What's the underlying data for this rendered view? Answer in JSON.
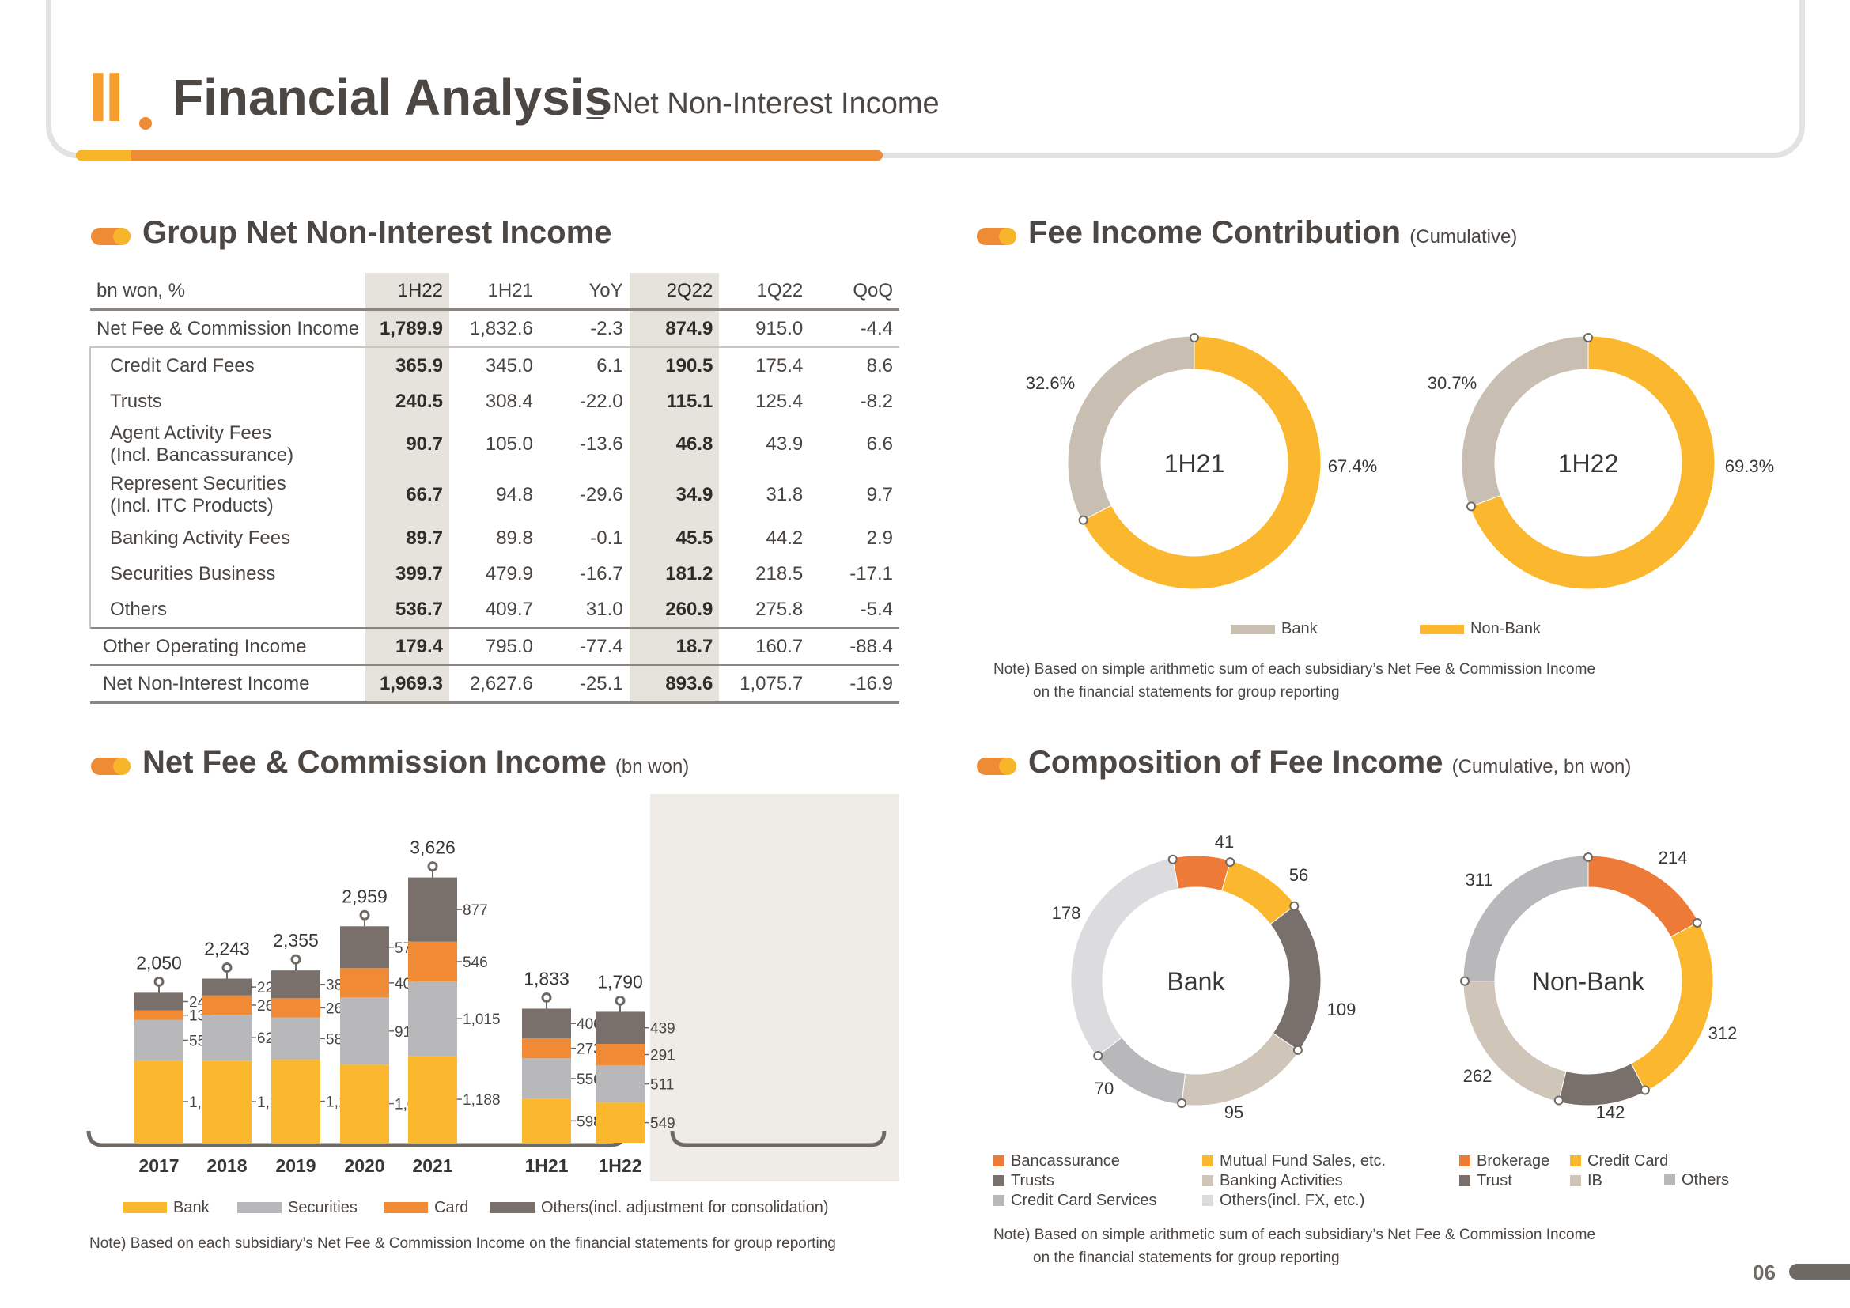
{
  "header": {
    "section": "II",
    "title": "Financial Analysis",
    "subtitle": "_ Net Non-Interest Income"
  },
  "sections": {
    "group": "Group Net Non-Interest Income",
    "fee_contrib": "Fee Income Contribution",
    "fee_contrib_sub": "(Cumulative)",
    "net_fee": "Net Fee & Commission Income",
    "net_fee_sub": "(bn won)",
    "composition": "Composition of Fee Income",
    "composition_sub": "(Cumulative, bn won)"
  },
  "table": {
    "headers": [
      "bn won, %",
      "1H22",
      "1H21",
      "YoY",
      "2Q22",
      "1Q22",
      "QoQ"
    ],
    "rows": [
      [
        "Net Fee & Commission Income",
        "1,789.9",
        "1,832.6",
        "-2.3",
        "874.9",
        "915.0",
        "-4.4"
      ],
      [
        "Credit Card Fees",
        "365.9",
        "345.0",
        "6.1",
        "190.5",
        "175.4",
        "8.6"
      ],
      [
        "Trusts",
        "240.5",
        "308.4",
        "-22.0",
        "115.1",
        "125.4",
        "-8.2"
      ],
      [
        "Agent Activity Fees",
        "90.7",
        "105.0",
        "-13.6",
        "46.8",
        "43.9",
        "6.6"
      ],
      [
        "Represent Securities",
        "66.7",
        "94.8",
        "-29.6",
        "34.9",
        "31.8",
        "9.7"
      ],
      [
        "Banking Activity Fees",
        "89.7",
        "89.8",
        "-0.1",
        "45.5",
        "44.2",
        "2.9"
      ],
      [
        "Securities Business",
        "399.7",
        "479.9",
        "-16.7",
        "181.2",
        "218.5",
        "-17.1"
      ],
      [
        "Others",
        "536.7",
        "409.7",
        "31.0",
        "260.9",
        "275.8",
        "-5.4"
      ],
      [
        "Other Operating Income",
        "179.4",
        "795.0",
        "-77.4",
        "18.7",
        "160.7",
        "-88.4"
      ],
      [
        "Net Non-Interest Income",
        "1,969.3",
        "2,627.6",
        "-25.1",
        "893.6",
        "1,075.7",
        "-16.9"
      ]
    ],
    "row_sublabels": {
      "3": "(Incl. Bancassurance)",
      "4": "(Incl. ITC Products)"
    }
  },
  "chart_data": [
    {
      "type": "bar",
      "title": "Net Fee & Commission Income",
      "categories": [
        "2017",
        "2018",
        "2019",
        "2020",
        "2021",
        "1H21",
        "1H22"
      ],
      "totals": [
        2050,
        2243,
        2355,
        2959,
        3626,
        1833,
        1790
      ],
      "series": [
        {
          "name": "Bank",
          "color": "#fbb82e",
          "values": [
            1125,
            1123,
            1133,
            1068,
            1188,
            598,
            549
          ]
        },
        {
          "name": "Securities",
          "color": "#b8b8bb",
          "values": [
            552,
            626,
            580,
            917,
            1015,
            556,
            511
          ]
        },
        {
          "name": "Card",
          "color": "#f08a35",
          "values": [
            133,
            265,
            262,
            401,
            546,
            273,
            291
          ]
        },
        {
          "name": "Others(incl. adjustment for consolidation)",
          "color": "#7a706b",
          "values": [
            240,
            229,
            380,
            573,
            877,
            406,
            439
          ]
        }
      ]
    },
    {
      "type": "pie",
      "title": "Fee Income Contribution",
      "charts": [
        {
          "label": "1H21",
          "slices": [
            {
              "name": "Bank",
              "value": 32.6,
              "label": "32.6%",
              "color": "#c8bfb2"
            },
            {
              "name": "Non-Bank",
              "value": 67.4,
              "label": "67.4%",
              "color": "#fbb82e"
            }
          ]
        },
        {
          "label": "1H22",
          "slices": [
            {
              "name": "Bank",
              "value": 30.7,
              "label": "30.7%",
              "color": "#c8bfb2"
            },
            {
              "name": "Non-Bank",
              "value": 69.3,
              "label": "69.3%",
              "color": "#fbb82e"
            }
          ]
        }
      ],
      "legend": [
        "Bank",
        "Non-Bank"
      ]
    },
    {
      "type": "pie",
      "title": "Composition of Fee Income",
      "charts": [
        {
          "label": "Bank",
          "slices": [
            {
              "name": "Bancassurance",
              "value": 41,
              "color": "#ee7a38"
            },
            {
              "name": "Mutual Fund Sales, etc.",
              "value": 56,
              "color": "#fbb82e"
            },
            {
              "name": "Trusts",
              "value": 109,
              "color": "#7a706b"
            },
            {
              "name": "Banking Activities",
              "value": 95,
              "color": "#cfc6b9"
            },
            {
              "name": "Credit Card Services",
              "value": 70,
              "color": "#b8b8bb"
            },
            {
              "name": "Others(incl. FX, etc.)",
              "value": 178,
              "color": "#dcdcde"
            }
          ]
        },
        {
          "label": "Non-Bank",
          "slices": [
            {
              "name": "Brokerage",
              "value": 214,
              "color": "#ee7a38"
            },
            {
              "name": "Credit Card",
              "value": 312,
              "color": "#fbb82e"
            },
            {
              "name": "Trust",
              "value": 142,
              "color": "#7a706b"
            },
            {
              "name": "IB",
              "value": 262,
              "color": "#cfc6b9"
            },
            {
              "name": "Others",
              "value": 311,
              "color": "#b8b8bb"
            }
          ]
        }
      ]
    }
  ],
  "notes": {
    "contrib_1": "Note) Based on simple arithmetic sum of each subsidiary’s Net Fee & Commission Income",
    "contrib_2": "on the financial statements for group reporting",
    "netfee": "Note) Based on each subsidiary’s Net Fee & Commission Income on the financial statements for group reporting",
    "comp_1": "Note) Based on simple arithmetic sum of each subsidiary’s Net Fee & Commission Income",
    "comp_2": "on the financial statements for group reporting"
  },
  "page_number": "06"
}
